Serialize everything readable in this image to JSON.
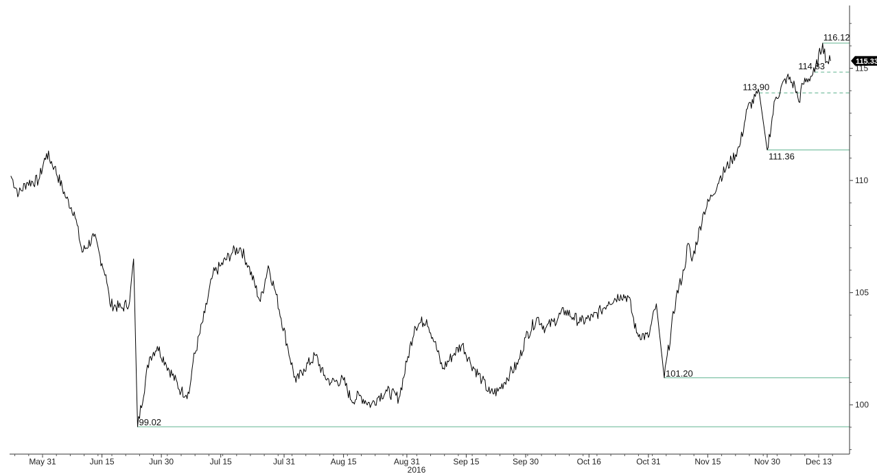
{
  "chart_data": {
    "type": "line",
    "title": "",
    "xlabel": "",
    "ylabel": "",
    "year_label": "2016",
    "x_tick_labels": [
      "May 31",
      "Jun 15",
      "Jun 30",
      "Jul 15",
      "Jul 31",
      "Aug 15",
      "Aug 31",
      "Sep 15",
      "Sep 30",
      "Oct 16",
      "Oct 31",
      "Nov 15",
      "Nov 30",
      "Dec 13"
    ],
    "y_ticks": [
      100,
      105,
      110,
      115
    ],
    "ylim": [
      97.8,
      117.8
    ],
    "grid": false,
    "line_color": "#000000",
    "level_color": "#5fb38f",
    "last_value": "115.33",
    "series": [
      {
        "x": [
          "May 23",
          "May 25",
          "May 27",
          "May 30",
          "Jun 1",
          "Jun 3",
          "Jun 6",
          "Jun 8",
          "Jun 10",
          "Jun 13",
          "Jun 15",
          "Jun 16",
          "Jun 17",
          "Jun 20",
          "Jun 22",
          "Jun 23",
          "Jun 24",
          "Jun 27",
          "Jun 29",
          "Jul 1",
          "Jul 5",
          "Jul 7",
          "Jul 8",
          "Jul 11",
          "Jul 13",
          "Jul 15",
          "Jul 18",
          "Jul 20",
          "Jul 22",
          "Jul 25",
          "Jul 27",
          "Jul 29",
          "Aug 1",
          "Aug 3",
          "Aug 5",
          "Aug 8",
          "Aug 10",
          "Aug 12",
          "Aug 15",
          "Aug 17",
          "Aug 19",
          "Aug 22",
          "Aug 24",
          "Aug 26",
          "Aug 29",
          "Aug 31",
          "Sep 2",
          "Sep 5",
          "Sep 7",
          "Sep 9",
          "Sep 12",
          "Sep 14",
          "Sep 16",
          "Sep 19",
          "Sep 21",
          "Sep 23",
          "Sep 26",
          "Sep 28",
          "Sep 30",
          "Oct 3",
          "Oct 5",
          "Oct 7",
          "Oct 10",
          "Oct 12",
          "Oct 14",
          "Oct 17",
          "Oct 19",
          "Oct 21",
          "Oct 24",
          "Oct 26",
          "Oct 28",
          "Oct 31",
          "Nov 2",
          "Nov 4",
          "Nov 7",
          "Nov 9",
          "Nov 10",
          "Nov 11",
          "Nov 14",
          "Nov 16",
          "Nov 18",
          "Nov 21",
          "Nov 23",
          "Nov 25",
          "Nov 28",
          "Nov 30",
          "Dec 2",
          "Dec 5",
          "Dec 7",
          "Dec 8",
          "Dec 9",
          "Dec 12",
          "Dec 14",
          "Dec 15",
          "Dec 16"
        ],
        "values": [
          110.2,
          109.4,
          109.9,
          110.0,
          111.2,
          110.6,
          109.2,
          108.6,
          106.8,
          107.5,
          106.3,
          105.8,
          104.5,
          104.3,
          104.6,
          106.5,
          99.02,
          102.1,
          102.6,
          101.9,
          100.6,
          100.5,
          101.9,
          104.1,
          105.8,
          106.2,
          106.8,
          107.0,
          106.2,
          104.6,
          106.2,
          104.9,
          102.5,
          101.0,
          101.6,
          102.2,
          101.3,
          101.0,
          101.1,
          100.2,
          100.4,
          100.0,
          100.4,
          100.6,
          100.3,
          101.9,
          103.5,
          103.8,
          102.8,
          101.6,
          102.3,
          102.7,
          101.9,
          101.1,
          100.5,
          100.6,
          101.4,
          101.8,
          103.0,
          103.9,
          103.4,
          103.7,
          104.2,
          103.9,
          103.7,
          103.9,
          104.2,
          104.6,
          104.9,
          104.8,
          103.2,
          103.0,
          104.5,
          101.2,
          104.8,
          106.0,
          107.2,
          106.4,
          108.6,
          109.3,
          110.1,
          110.9,
          111.5,
          113.2,
          113.9,
          111.36,
          113.6,
          114.6,
          114.2,
          113.5,
          114.3,
          114.83,
          116.12,
          115.3,
          115.33
        ]
      }
    ],
    "levels": [
      {
        "label": "116.12",
        "value": 116.12,
        "style": "solid"
      },
      {
        "label": "114.83",
        "value": 114.83,
        "style": "dashed"
      },
      {
        "label": "113.90",
        "value": 113.9,
        "style": "dashed"
      },
      {
        "label": "111.36",
        "value": 111.36,
        "style": "solid"
      },
      {
        "label": "101.20",
        "value": 101.2,
        "style": "solid"
      },
      {
        "label": "99.02",
        "value": 99.02,
        "style": "solid"
      }
    ]
  }
}
